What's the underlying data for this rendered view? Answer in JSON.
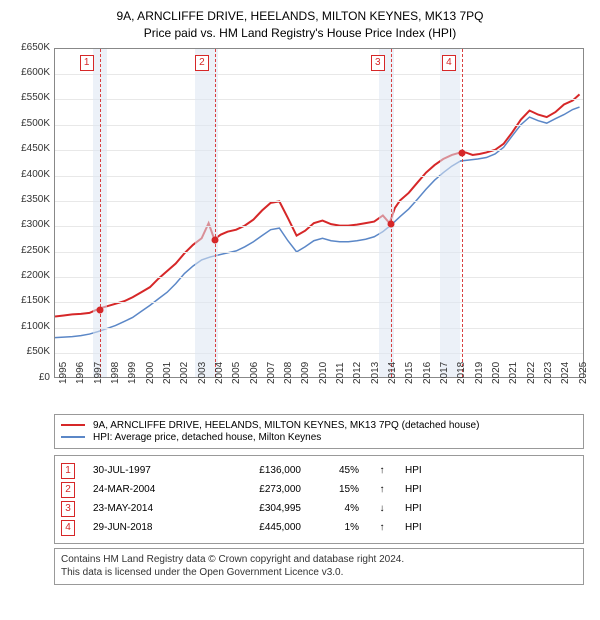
{
  "title_line1": "9A, ARNCLIFFE DRIVE, HEELANDS, MILTON KEYNES, MK13 7PQ",
  "title_line2": "Price paid vs. HM Land Registry's House Price Index (HPI)",
  "chart": {
    "type": "line",
    "background_color": "#ffffff",
    "grid_color": "#e8e8e8",
    "border_color": "#888888",
    "xlim": [
      1995,
      2025.6
    ],
    "ylim": [
      0,
      650000
    ],
    "ytick_step": 50000,
    "yticks_labels": [
      "£0",
      "£50K",
      "£100K",
      "£150K",
      "£200K",
      "£250K",
      "£300K",
      "£350K",
      "£400K",
      "£450K",
      "£500K",
      "£550K",
      "£600K",
      "£650K"
    ],
    "xticks": [
      1995,
      1996,
      1997,
      1998,
      1999,
      2000,
      2001,
      2002,
      2003,
      2004,
      2005,
      2006,
      2007,
      2008,
      2009,
      2010,
      2011,
      2012,
      2013,
      2014,
      2015,
      2016,
      2017,
      2018,
      2019,
      2020,
      2021,
      2022,
      2023,
      2024,
      2025
    ],
    "label_fontsize": 10,
    "recession_color": "#dce6f2",
    "recessions": [
      [
        1997.2,
        1998.0
      ],
      [
        2003.1,
        2004.4
      ],
      [
        2013.7,
        2014.6
      ],
      [
        2017.2,
        2018.4
      ]
    ],
    "event_line_color": "#d94040",
    "events_x": [
      1997.58,
      2004.23,
      2014.39,
      2018.49
    ],
    "event_markers": [
      "1",
      "2",
      "3",
      "4"
    ],
    "series": {
      "property": {
        "color": "#d62728",
        "line_width": 2,
        "points": [
          [
            1995.0,
            120000
          ],
          [
            1995.5,
            122000
          ],
          [
            1996.0,
            124000
          ],
          [
            1996.5,
            125000
          ],
          [
            1997.0,
            127000
          ],
          [
            1997.58,
            136000
          ],
          [
            1998.0,
            140000
          ],
          [
            1998.5,
            145000
          ],
          [
            1999.0,
            150000
          ],
          [
            1999.5,
            158000
          ],
          [
            2000.0,
            168000
          ],
          [
            2000.5,
            178000
          ],
          [
            2001.0,
            195000
          ],
          [
            2001.5,
            210000
          ],
          [
            2002.0,
            225000
          ],
          [
            2002.5,
            245000
          ],
          [
            2003.0,
            262000
          ],
          [
            2003.5,
            275000
          ],
          [
            2003.9,
            305000
          ],
          [
            2004.23,
            273000
          ],
          [
            2004.6,
            282000
          ],
          [
            2005.0,
            288000
          ],
          [
            2005.5,
            292000
          ],
          [
            2006.0,
            300000
          ],
          [
            2006.5,
            312000
          ],
          [
            2007.0,
            330000
          ],
          [
            2007.5,
            345000
          ],
          [
            2008.0,
            348000
          ],
          [
            2008.5,
            315000
          ],
          [
            2009.0,
            280000
          ],
          [
            2009.5,
            290000
          ],
          [
            2010.0,
            305000
          ],
          [
            2010.5,
            310000
          ],
          [
            2011.0,
            303000
          ],
          [
            2011.5,
            300000
          ],
          [
            2012.0,
            300000
          ],
          [
            2012.5,
            302000
          ],
          [
            2013.0,
            305000
          ],
          [
            2013.5,
            308000
          ],
          [
            2014.0,
            320000
          ],
          [
            2014.39,
            304995
          ],
          [
            2014.7,
            335000
          ],
          [
            2015.0,
            350000
          ],
          [
            2015.5,
            365000
          ],
          [
            2016.0,
            385000
          ],
          [
            2016.5,
            405000
          ],
          [
            2017.0,
            420000
          ],
          [
            2017.5,
            432000
          ],
          [
            2018.0,
            440000
          ],
          [
            2018.49,
            445000
          ],
          [
            2018.8,
            445000
          ],
          [
            2019.2,
            440000
          ],
          [
            2019.6,
            442000
          ],
          [
            2020.0,
            445000
          ],
          [
            2020.5,
            450000
          ],
          [
            2021.0,
            462000
          ],
          [
            2021.5,
            485000
          ],
          [
            2022.0,
            510000
          ],
          [
            2022.5,
            528000
          ],
          [
            2023.0,
            520000
          ],
          [
            2023.5,
            515000
          ],
          [
            2024.0,
            525000
          ],
          [
            2024.5,
            540000
          ],
          [
            2025.0,
            548000
          ],
          [
            2025.4,
            560000
          ]
        ],
        "sale_dots": [
          [
            1997.58,
            136000
          ],
          [
            2004.23,
            273000
          ],
          [
            2014.39,
            304995
          ],
          [
            2018.49,
            445000
          ]
        ]
      },
      "hpi": {
        "color": "#5b87c7",
        "line_width": 1.5,
        "points": [
          [
            1995.0,
            78000
          ],
          [
            1995.5,
            79000
          ],
          [
            1996.0,
            80000
          ],
          [
            1996.5,
            82000
          ],
          [
            1997.0,
            85000
          ],
          [
            1997.5,
            90000
          ],
          [
            1998.0,
            96000
          ],
          [
            1998.5,
            102000
          ],
          [
            1999.0,
            110000
          ],
          [
            1999.5,
            118000
          ],
          [
            2000.0,
            130000
          ],
          [
            2000.5,
            142000
          ],
          [
            2001.0,
            155000
          ],
          [
            2001.5,
            168000
          ],
          [
            2002.0,
            185000
          ],
          [
            2002.5,
            205000
          ],
          [
            2003.0,
            220000
          ],
          [
            2003.5,
            232000
          ],
          [
            2004.0,
            238000
          ],
          [
            2004.5,
            242000
          ],
          [
            2005.0,
            246000
          ],
          [
            2005.5,
            250000
          ],
          [
            2006.0,
            258000
          ],
          [
            2006.5,
            268000
          ],
          [
            2007.0,
            280000
          ],
          [
            2007.5,
            292000
          ],
          [
            2008.0,
            295000
          ],
          [
            2008.5,
            270000
          ],
          [
            2009.0,
            248000
          ],
          [
            2009.5,
            258000
          ],
          [
            2010.0,
            270000
          ],
          [
            2010.5,
            275000
          ],
          [
            2011.0,
            270000
          ],
          [
            2011.5,
            268000
          ],
          [
            2012.0,
            268000
          ],
          [
            2012.5,
            270000
          ],
          [
            2013.0,
            273000
          ],
          [
            2013.5,
            278000
          ],
          [
            2014.0,
            288000
          ],
          [
            2014.5,
            302000
          ],
          [
            2015.0,
            318000
          ],
          [
            2015.5,
            333000
          ],
          [
            2016.0,
            352000
          ],
          [
            2016.5,
            372000
          ],
          [
            2017.0,
            390000
          ],
          [
            2017.5,
            405000
          ],
          [
            2018.0,
            418000
          ],
          [
            2018.5,
            428000
          ],
          [
            2019.0,
            430000
          ],
          [
            2019.5,
            432000
          ],
          [
            2020.0,
            435000
          ],
          [
            2020.5,
            442000
          ],
          [
            2021.0,
            455000
          ],
          [
            2021.5,
            478000
          ],
          [
            2022.0,
            500000
          ],
          [
            2022.5,
            515000
          ],
          [
            2023.0,
            508000
          ],
          [
            2023.5,
            503000
          ],
          [
            2024.0,
            512000
          ],
          [
            2024.5,
            520000
          ],
          [
            2025.0,
            530000
          ],
          [
            2025.4,
            535000
          ]
        ]
      }
    }
  },
  "legend": {
    "items": [
      {
        "label": "9A, ARNCLIFFE DRIVE, HEELANDS, MILTON KEYNES, MK13 7PQ (detached house)",
        "color": "#d62728"
      },
      {
        "label": "HPI: Average price, detached house, Milton Keynes",
        "color": "#5b87c7"
      }
    ]
  },
  "events": [
    {
      "n": "1",
      "date": "30-JUL-1997",
      "price": "£136,000",
      "pct": "45%",
      "arrow": "↑",
      "hpi": "HPI"
    },
    {
      "n": "2",
      "date": "24-MAR-2004",
      "price": "£273,000",
      "pct": "15%",
      "arrow": "↑",
      "hpi": "HPI"
    },
    {
      "n": "3",
      "date": "23-MAY-2014",
      "price": "£304,995",
      "pct": "4%",
      "arrow": "↓",
      "hpi": "HPI"
    },
    {
      "n": "4",
      "date": "29-JUN-2018",
      "price": "£445,000",
      "pct": "1%",
      "arrow": "↑",
      "hpi": "HPI"
    }
  ],
  "footnote_line1": "Contains HM Land Registry data © Crown copyright and database right 2024.",
  "footnote_line2": "This data is licensed under the Open Government Licence v3.0."
}
